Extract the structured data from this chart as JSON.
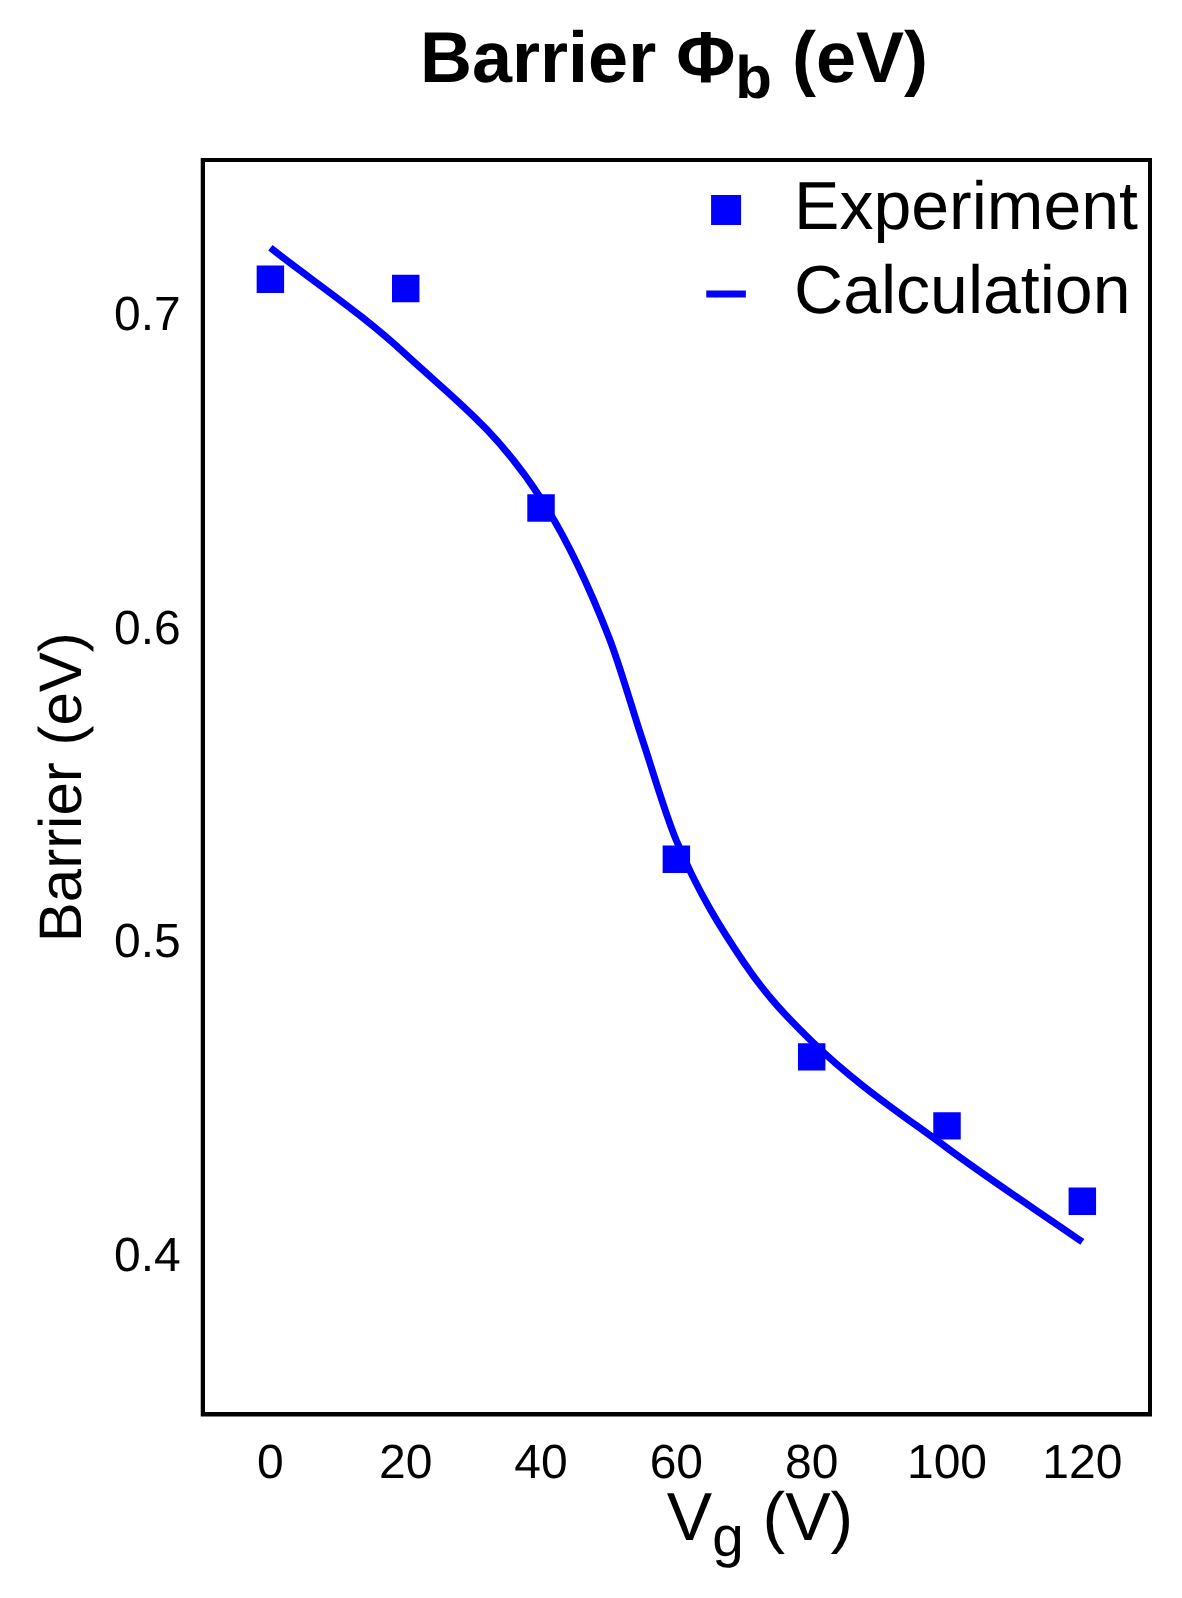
{
  "chart_data": {
    "type": "scatter",
    "title": "Barrier Φ$_{b}$ (eV)",
    "xlabel": "V$_{g}$ (V)",
    "ylabel": "Barrier (eV)",
    "xlim": [
      -10,
      130
    ],
    "xticks": [
      0,
      20,
      40,
      60,
      80,
      100,
      120
    ],
    "ylim": [
      0.35,
      0.75
    ],
    "yticks": [
      0.4,
      0.5,
      0.6,
      0.7
    ],
    "grid": false,
    "legend": "top right",
    "marker": "square",
    "series": [
      {
        "name": "Experiment",
        "type": "scatter",
        "color": "#0000ff",
        "x": [
          0,
          20,
          40,
          60,
          80,
          100,
          120
        ],
        "values": [
          0.712,
          0.709,
          0.639,
          0.527,
          0.464,
          0.442,
          0.418
        ]
      },
      {
        "name": "Calculation",
        "type": "line",
        "color": "#0000ff",
        "marker": "none",
        "line_style": "solid",
        "x": [
          0,
          20,
          40,
          50,
          55,
          60,
          70,
          80,
          100,
          120
        ],
        "values": [
          0.722,
          0.688,
          0.642,
          0.598,
          0.565,
          0.533,
          0.494,
          0.469,
          0.435,
          0.405
        ]
      }
    ]
  }
}
